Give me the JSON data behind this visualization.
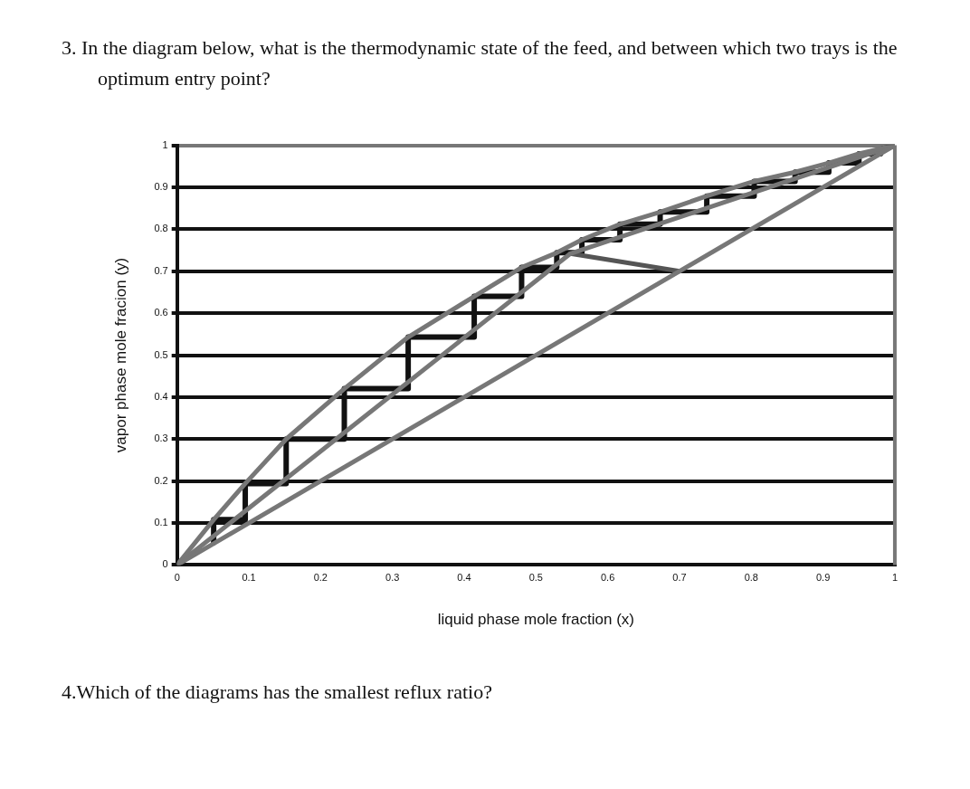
{
  "chart_data": {
    "type": "line",
    "title": "3. In the diagram below, what is the thermodynamic state of the feed, and between which two trays is the optimum entry point?",
    "xlabel": "liquid phase mole fraction (x)",
    "ylabel": "vapor phase mole fracion (y)",
    "annotations": [
      "4.Which of the diagrams has the smallest reflux ratio?"
    ],
    "xlim": [
      0,
      1
    ],
    "ylim": [
      0,
      1
    ],
    "xticks": [
      0,
      0.1,
      0.2,
      0.3,
      0.4,
      0.5,
      0.6,
      0.7,
      0.8,
      0.9,
      1
    ],
    "yticks": [
      0,
      0.1,
      0.2,
      0.3,
      0.4,
      0.5,
      0.6,
      0.7,
      0.8,
      0.9,
      1
    ],
    "grid": "y",
    "legend": false,
    "marker": "none",
    "line_style": "solid",
    "series": [
      {
        "color": "#777777",
        "x": [
          0,
          1
        ],
        "values": [
          0,
          1
        ]
      },
      {
        "color": "#777777",
        "x": [
          0,
          0.051,
          0.095,
          0.152,
          0.233,
          0.322,
          0.414,
          0.48,
          0.529,
          0.564,
          0.617,
          0.673,
          0.738,
          0.804,
          0.861,
          0.908,
          0.95,
          1
        ],
        "values": [
          0,
          0.108,
          0.194,
          0.3,
          0.42,
          0.543,
          0.64,
          0.709,
          0.744,
          0.775,
          0.812,
          0.841,
          0.879,
          0.914,
          0.936,
          0.958,
          0.98,
          1
        ]
      },
      {
        "color": "#777777",
        "x": [
          0,
          0.548,
          1
        ],
        "values": [
          0,
          0.742,
          1
        ]
      },
      {
        "color": "#555555",
        "x": [
          0.548,
          0.7
        ],
        "values": [
          0.742,
          0.7
        ]
      },
      {
        "color": "#111111",
        "x": [
          0.051,
          0.051,
          0.095,
          0.095,
          0.152,
          0.152,
          0.233,
          0.233,
          0.322,
          0.322,
          0.414,
          0.414,
          0.48,
          0.48,
          0.529,
          0.529,
          0.564,
          0.564,
          0.617,
          0.617,
          0.673,
          0.673,
          0.738,
          0.738,
          0.804,
          0.804,
          0.861,
          0.861,
          0.908,
          0.908,
          0.95,
          0.95,
          0.98,
          0.98,
          1
        ],
        "values": [
          0.053,
          0.108,
          0.108,
          0.194,
          0.194,
          0.3,
          0.3,
          0.42,
          0.42,
          0.543,
          0.543,
          0.64,
          0.64,
          0.709,
          0.709,
          0.744,
          0.744,
          0.775,
          0.775,
          0.812,
          0.812,
          0.841,
          0.841,
          0.879,
          0.879,
          0.914,
          0.914,
          0.936,
          0.936,
          0.958,
          0.958,
          0.98,
          0.98,
          0.99,
          1
        ]
      }
    ]
  }
}
